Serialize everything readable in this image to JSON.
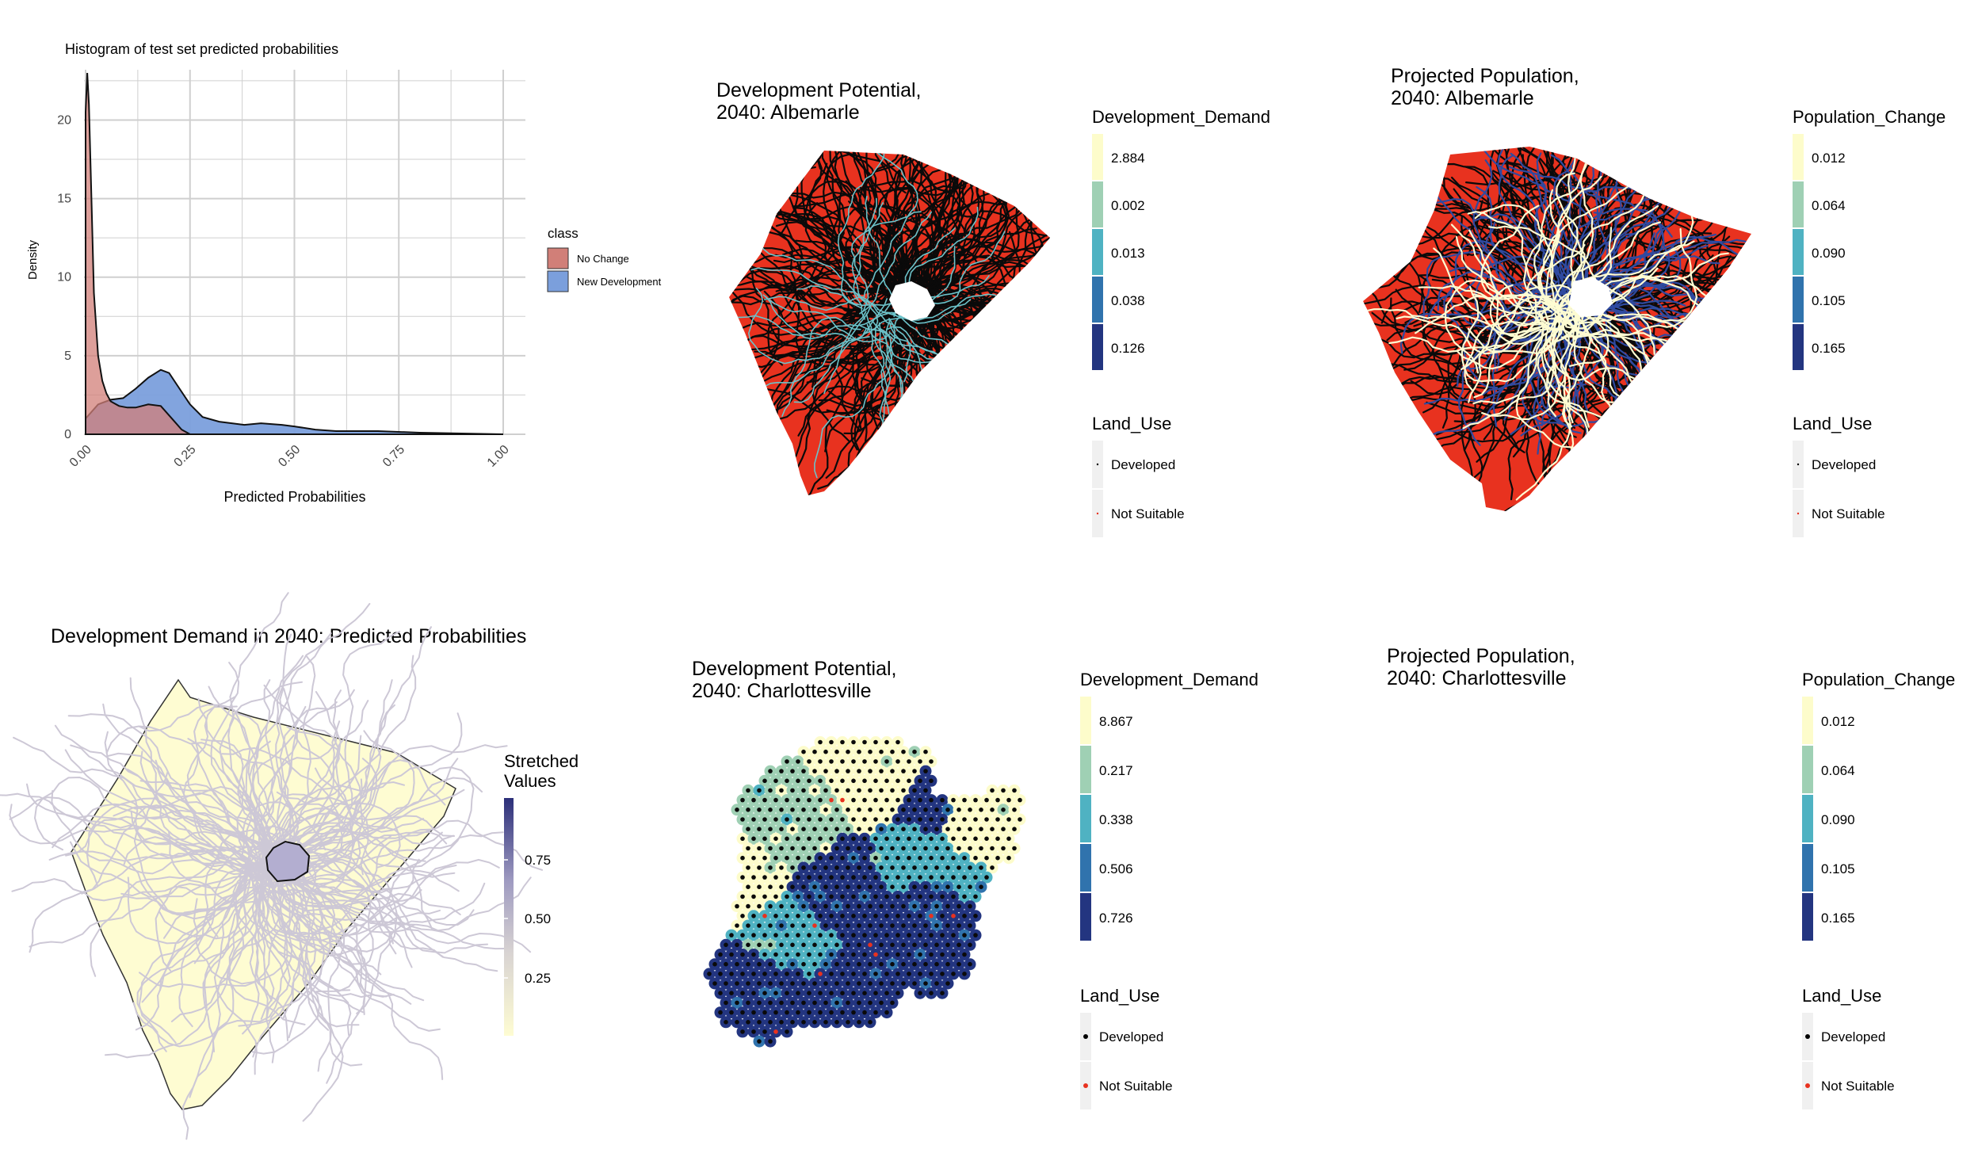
{
  "colors": {
    "no_change": "#d17f78",
    "new_development": "#7b9fdc",
    "overlap": "#7a6aa3",
    "map_red": "#e8321f",
    "ylgnbu": [
      "#fdfccb",
      "#9fd0b4",
      "#4fb2c2",
      "#3073ad",
      "#233580"
    ],
    "stretch": [
      "#fefcd2",
      "#d8d3d2",
      "#9f9bc1",
      "#2c2f79"
    ]
  },
  "chart_data": [
    {
      "type": "area",
      "title": "Histogram of test set predicted probabilities",
      "xlabel": "Predicted Probabilities",
      "ylabel": "Density",
      "xlim": [
        0,
        1
      ],
      "ylim": [
        0,
        23
      ],
      "x_ticks": [
        "0.00",
        "0.25",
        "0.50",
        "0.75",
        "1.00"
      ],
      "y_ticks": [
        "0",
        "5",
        "10",
        "15",
        "20"
      ],
      "legend": {
        "title": "class",
        "placement": "right",
        "entries": [
          "No Change",
          "New Development"
        ]
      },
      "series": [
        {
          "name": "No Change",
          "x": [
            0,
            0.004,
            0.008,
            0.014,
            0.02,
            0.03,
            0.04,
            0.05,
            0.06,
            0.08,
            0.1,
            0.12,
            0.15,
            0.18,
            0.21,
            0.23,
            0.25
          ],
          "values": [
            20.5,
            23,
            21,
            15,
            9,
            5,
            3.4,
            2.6,
            2.1,
            1.8,
            1.7,
            1.7,
            1.9,
            1.8,
            0.9,
            0.3,
            0
          ]
        },
        {
          "name": "New Development",
          "x": [
            0,
            0.03,
            0.06,
            0.09,
            0.12,
            0.15,
            0.18,
            0.2,
            0.22,
            0.25,
            0.28,
            0.32,
            0.38,
            0.42,
            0.47,
            0.5,
            0.55,
            0.6,
            0.65,
            0.7,
            0.8,
            0.9,
            1.0
          ],
          "values": [
            1.0,
            1.9,
            2.2,
            2.3,
            2.9,
            3.6,
            4.1,
            3.9,
            3.1,
            1.9,
            1.1,
            0.8,
            0.6,
            0.7,
            0.6,
            0.5,
            0.3,
            0.2,
            0.2,
            0.2,
            0.1,
            0.05,
            0
          ]
        }
      ]
    },
    {
      "type": "heatmap",
      "title": "Development Potential,\n2040: Albemarle",
      "legend": {
        "title": "Development_Demand",
        "entries": [
          "2.884",
          "0.002",
          "0.013",
          "0.038",
          "0.126"
        ],
        "land_use_title": "Land_Use",
        "land_use_entries": [
          "Developed",
          "Not Suitable"
        ]
      }
    },
    {
      "type": "heatmap",
      "title": "Projected Population,\n2040: Albemarle",
      "legend": {
        "title": "Population_Change",
        "entries": [
          "0.012",
          "0.064",
          "0.090",
          "0.105",
          "0.165"
        ],
        "land_use_title": "Land_Use",
        "land_use_entries": [
          "Developed",
          "Not Suitable"
        ]
      }
    },
    {
      "type": "heatmap",
      "title": "Development Demand in 2040: Predicted Probabilities",
      "legend": {
        "title": "Stretched\nValues",
        "ticks": [
          "0.75",
          "0.50",
          "0.25"
        ]
      }
    },
    {
      "type": "heatmap",
      "title": "Development Potential,\n2040: Charlottesville",
      "legend": {
        "title": "Development_Demand",
        "entries": [
          "8.867",
          "0.217",
          "0.338",
          "0.506",
          "0.726"
        ],
        "land_use_title": "Land_Use",
        "land_use_entries": [
          "Developed",
          "Not Suitable"
        ]
      }
    },
    {
      "type": "heatmap",
      "title": "Projected Population,\n2040: Charlottesville",
      "legend": {
        "title": "Population_Change",
        "entries": [
          "0.012",
          "0.064",
          "0.090",
          "0.105",
          "0.165"
        ],
        "land_use_title": "Land_Use",
        "land_use_entries": [
          "Developed",
          "Not Suitable"
        ]
      }
    }
  ]
}
